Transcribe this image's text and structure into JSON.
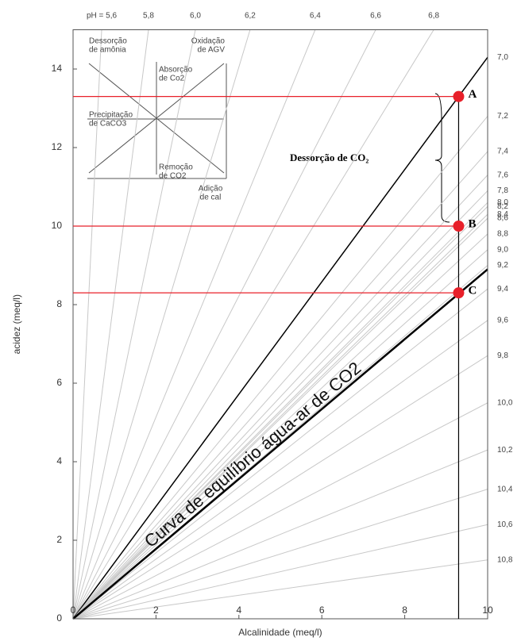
{
  "chart_data": {
    "type": "ph-diagram",
    "xlabel": "Alcalinidade (meq/l)",
    "ylabel": "acidez (meq/l)",
    "xlim": [
      0,
      10
    ],
    "ylim": [
      0,
      15
    ],
    "xticks": [
      0,
      2,
      4,
      6,
      8,
      10
    ],
    "yticks": [
      0,
      2,
      4,
      6,
      8,
      10,
      12,
      14
    ],
    "ph_top": [
      {
        "label": "pH = 5,6",
        "x": 0.69
      },
      {
        "label": "5,8",
        "x": 1.82
      },
      {
        "label": "6,0",
        "x": 2.95
      },
      {
        "label": "6,2",
        "x": 4.27
      },
      {
        "label": "6,4",
        "x": 5.84
      },
      {
        "label": "6,6",
        "x": 7.3
      },
      {
        "label": "6,8",
        "x": 8.7
      }
    ],
    "ph_right": [
      {
        "label": "7,0",
        "y": 14.3
      },
      {
        "label": "7,2",
        "y": 12.8
      },
      {
        "label": "7,4",
        "y": 11.9
      },
      {
        "label": "7,6",
        "y": 11.3
      },
      {
        "label": "7,8",
        "y": 10.9
      },
      {
        "label": "8,0",
        "y": 10.6
      },
      {
        "label": "8,2",
        "y": 10.5
      },
      {
        "label": "8,4",
        "y": 10.3
      },
      {
        "label": "8,6",
        "y": 10.2
      },
      {
        "label": "8,8",
        "y": 9.8
      },
      {
        "label": "9,0",
        "y": 9.4
      },
      {
        "label": "9,2",
        "y": 9.0
      },
      {
        "label": "9,4",
        "y": 8.4
      },
      {
        "label": "9,6",
        "y": 7.6
      },
      {
        "label": "9,8",
        "y": 6.7
      },
      {
        "label": "10,0",
        "y": 5.5
      },
      {
        "label": "10,2",
        "y": 4.3
      },
      {
        "label": "10,4",
        "y": 3.3
      },
      {
        "label": "10,6",
        "y": 2.4
      },
      {
        "label": "10,8",
        "y": 1.5
      }
    ],
    "equilibrium": {
      "label": "Curva de equilíbrio água-ar de CO2",
      "y_end": 8.9
    },
    "points": [
      {
        "label": "A",
        "x": 9.3,
        "y": 13.3
      },
      {
        "label": "B",
        "x": 9.3,
        "y": 10.0
      },
      {
        "label": "C",
        "x": 9.3,
        "y": 8.3
      }
    ],
    "point_color": "#e8202a",
    "desorption_label": "Dessorção de CO₂",
    "inset": [
      [
        "Dessorção",
        "de amônia"
      ],
      [
        "Oxidação",
        "de AGV"
      ],
      [
        "Absorção",
        "de Co2"
      ],
      [
        "Precipitação",
        "de CaCO3"
      ],
      [
        "Remoção",
        "de CO2"
      ],
      [
        "Adição",
        "de cal"
      ]
    ]
  }
}
